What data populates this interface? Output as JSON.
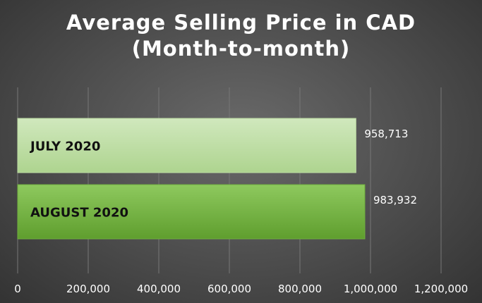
{
  "chart_data": {
    "type": "bar",
    "orientation": "horizontal",
    "title": "Average Selling Price in CAD\n(Month-to-month)",
    "categories": [
      "JULY 2020",
      "AUGUST 2020"
    ],
    "values": [
      958713,
      983932
    ],
    "data_labels": [
      "958,713",
      "983,932"
    ],
    "xlim": [
      0,
      1200000
    ],
    "x_ticks": [
      0,
      200000,
      400000,
      600000,
      800000,
      1000000,
      1200000
    ],
    "x_tick_labels": [
      "0",
      "200,000",
      "400,000",
      "600,000",
      "800,000",
      "1,000,000",
      "1,200,000"
    ],
    "grid": true,
    "legend": "none",
    "colors": {
      "bar_1_top": "#d0e8bd",
      "bar_1_bottom": "#aed48f",
      "bar_2_top": "#8ec95e",
      "bar_2_bottom": "#5f9e2e",
      "grid": "#777777",
      "text": "#ffffff",
      "category_text": "#111111"
    }
  }
}
